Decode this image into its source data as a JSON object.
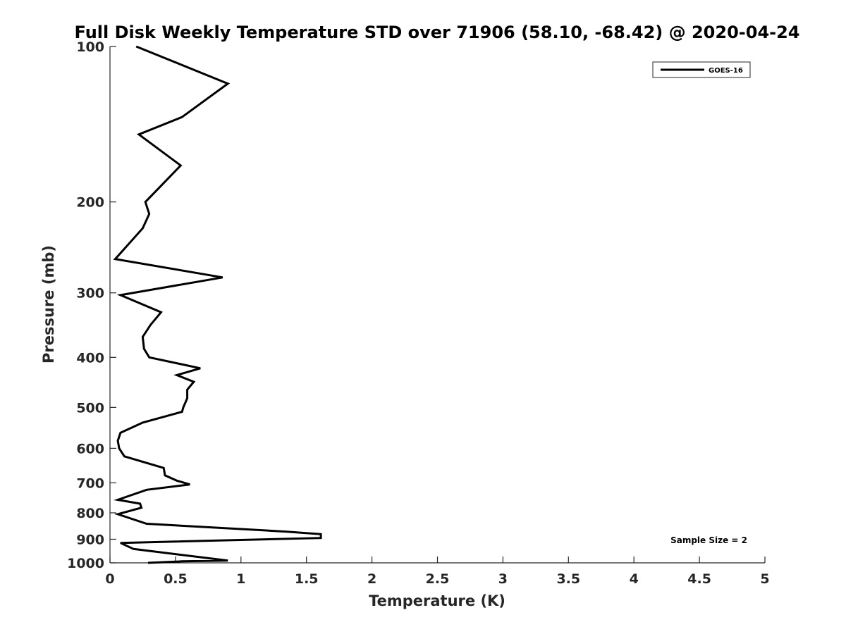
{
  "chart_data": {
    "type": "line",
    "title": "Full Disk Weekly Temperature STD over 71906 (58.10, -68.42) @ 2020-04-24",
    "xlabel": "Temperature (K)",
    "ylabel": "Pressure (mb)",
    "xlim": [
      0,
      5
    ],
    "ylim": [
      100,
      1000
    ],
    "yscale": "log",
    "y_reversed": true,
    "x_ticks": [
      "0",
      "0.5",
      "1",
      "1.5",
      "2",
      "2.5",
      "3",
      "3.5",
      "4",
      "4.5",
      "5"
    ],
    "y_ticks": [
      "100",
      "200",
      "300",
      "400",
      "500",
      "600",
      "700",
      "800",
      "900",
      "1000"
    ],
    "grid": false,
    "legend_position": "top-right",
    "series": [
      {
        "name": "GOES-16",
        "color": "#000000",
        "points": [
          [
            0.2,
            100
          ],
          [
            0.9,
            118
          ],
          [
            0.55,
            137
          ],
          [
            0.22,
            148
          ],
          [
            0.54,
            170
          ],
          [
            0.4,
            185
          ],
          [
            0.27,
            200
          ],
          [
            0.3,
            211
          ],
          [
            0.25,
            225
          ],
          [
            0.04,
            258
          ],
          [
            0.86,
            280
          ],
          [
            0.08,
            303
          ],
          [
            0.39,
            327
          ],
          [
            0.31,
            346
          ],
          [
            0.25,
            365
          ],
          [
            0.26,
            385
          ],
          [
            0.3,
            400
          ],
          [
            0.69,
            420
          ],
          [
            0.51,
            433
          ],
          [
            0.64,
            446
          ],
          [
            0.59,
            462
          ],
          [
            0.59,
            480
          ],
          [
            0.56,
            500
          ],
          [
            0.55,
            510
          ],
          [
            0.25,
            535
          ],
          [
            0.08,
            560
          ],
          [
            0.06,
            580
          ],
          [
            0.07,
            600
          ],
          [
            0.11,
            622
          ],
          [
            0.41,
            655
          ],
          [
            0.42,
            677
          ],
          [
            0.51,
            693
          ],
          [
            0.61,
            705
          ],
          [
            0.28,
            722
          ],
          [
            0.06,
            755
          ],
          [
            0.23,
            768
          ],
          [
            0.24,
            782
          ],
          [
            0.06,
            805
          ],
          [
            0.28,
            840
          ],
          [
            1.35,
            870
          ],
          [
            1.61,
            880
          ],
          [
            1.61,
            895
          ],
          [
            0.08,
            915
          ],
          [
            0.18,
            940
          ],
          [
            0.9,
            990
          ],
          [
            0.55,
            993
          ],
          [
            0.29,
            1000
          ]
        ]
      }
    ],
    "annotations": [
      "Sample Size = 2"
    ]
  }
}
